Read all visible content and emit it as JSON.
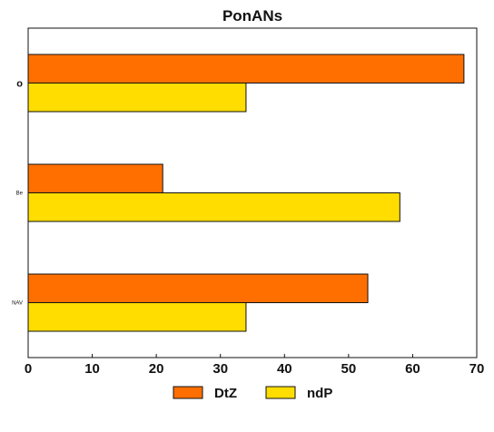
{
  "chart_data": {
    "type": "bar",
    "orientation": "horizontal",
    "title": "PonANs",
    "categories": [
      "o",
      "Be",
      "NAV"
    ],
    "series": [
      {
        "name": "DtZ",
        "color": "#ff6f00",
        "values": [
          68,
          21,
          53
        ]
      },
      {
        "name": "ndP",
        "color": "#ffdd00",
        "values": [
          34,
          58,
          34
        ]
      }
    ],
    "xlim": [
      0,
      70
    ],
    "xticks": [
      0,
      10,
      20,
      30,
      40,
      50,
      60,
      70
    ],
    "grid": false,
    "legend_position": "bottom-center"
  }
}
